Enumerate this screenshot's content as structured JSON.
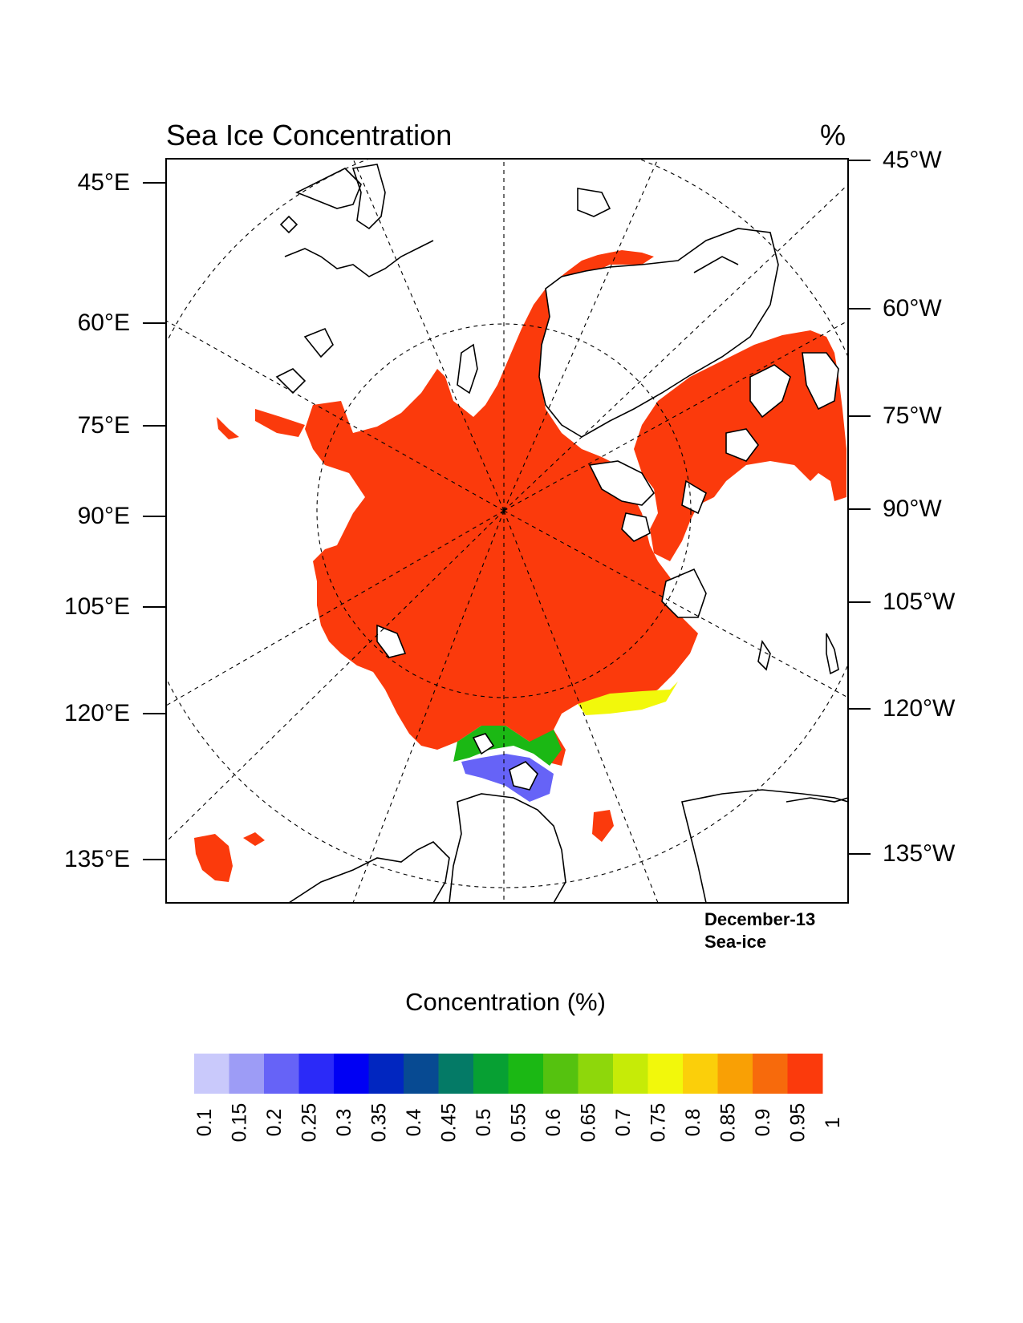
{
  "title": "Sea Ice Concentration",
  "units": "%",
  "left_labels": [
    "45°E",
    "60°E",
    "75°E",
    "90°E",
    "105°E",
    "120°E",
    "135°E"
  ],
  "right_labels": [
    "45°W",
    "60°W",
    "75°W",
    "90°W",
    "105°W",
    "120°W",
    "135°W"
  ],
  "info": {
    "date": "December-13",
    "variable": "Sea-ice"
  },
  "colorbar": {
    "title": "Concentration (%)",
    "labels": [
      "0.1",
      "0.15",
      "0.2",
      "0.25",
      "0.3",
      "0.35",
      "0.4",
      "0.45",
      "0.5",
      "0.55",
      "0.6",
      "0.65",
      "0.7",
      "0.75",
      "0.8",
      "0.85",
      "0.9",
      "0.95",
      "1"
    ],
    "colors": [
      "#c9c9fb",
      "#9d9cf6",
      "#6663f7",
      "#2b2af8",
      "#0000f4",
      "#0126c0",
      "#074a92",
      "#047a66",
      "#07a033",
      "#1bb814",
      "#55c20f",
      "#8ed70b",
      "#c6eb07",
      "#f2f80b",
      "#fbcf0a",
      "#f9a005",
      "#f76a0c",
      "#fb3a0c"
    ]
  },
  "colors": {
    "ice": "#fb3a0c",
    "coast": "#000000",
    "grid": "#000000"
  }
}
